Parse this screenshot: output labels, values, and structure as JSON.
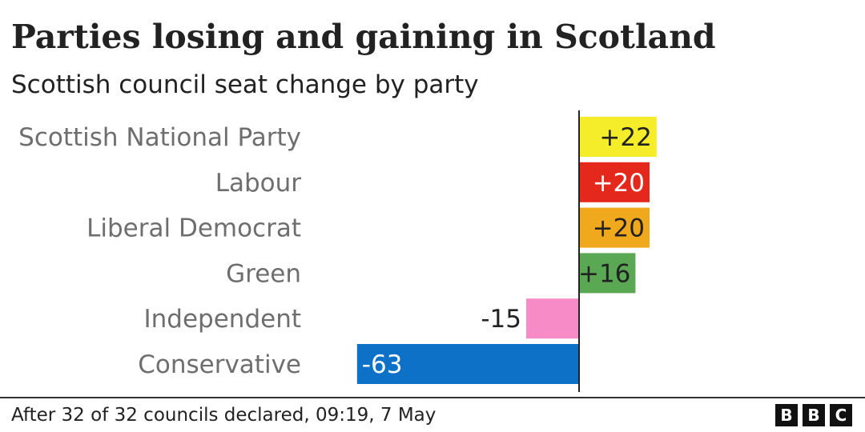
{
  "header": {
    "title": "Parties losing and gaining in Scotland",
    "subtitle": "Scottish council seat change by party"
  },
  "footer": {
    "source": "After 32 of 32 councils declared, 09:19, 7 May",
    "logo_letters": [
      "B",
      "B",
      "C"
    ]
  },
  "chart_data": {
    "type": "bar",
    "orientation": "horizontal",
    "title": "Parties losing and gaining in Scotland",
    "subtitle": "Scottish council seat change by party",
    "categories": [
      "Scottish National Party",
      "Labour",
      "Liberal Democrat",
      "Green",
      "Independent",
      "Conservative"
    ],
    "values": [
      22,
      20,
      20,
      16,
      -15,
      -63
    ],
    "labels": [
      "+22",
      "+20",
      "+20",
      "+16",
      "-15",
      "-63"
    ],
    "colors": [
      "#f5ec2a",
      "#e4291c",
      "#f0a91d",
      "#5aa854",
      "#f78bc8",
      "#0c71c7"
    ],
    "label_colors": [
      "#222222",
      "#ffffff",
      "#222222",
      "#222222",
      "#222222",
      "#ffffff"
    ],
    "label_inside": [
      true,
      true,
      true,
      true,
      false,
      true
    ],
    "xlim": [
      -63,
      22
    ],
    "axis_color": "#222222",
    "category_label_color": "#6e6e6e",
    "grid": false,
    "legend": "none"
  }
}
